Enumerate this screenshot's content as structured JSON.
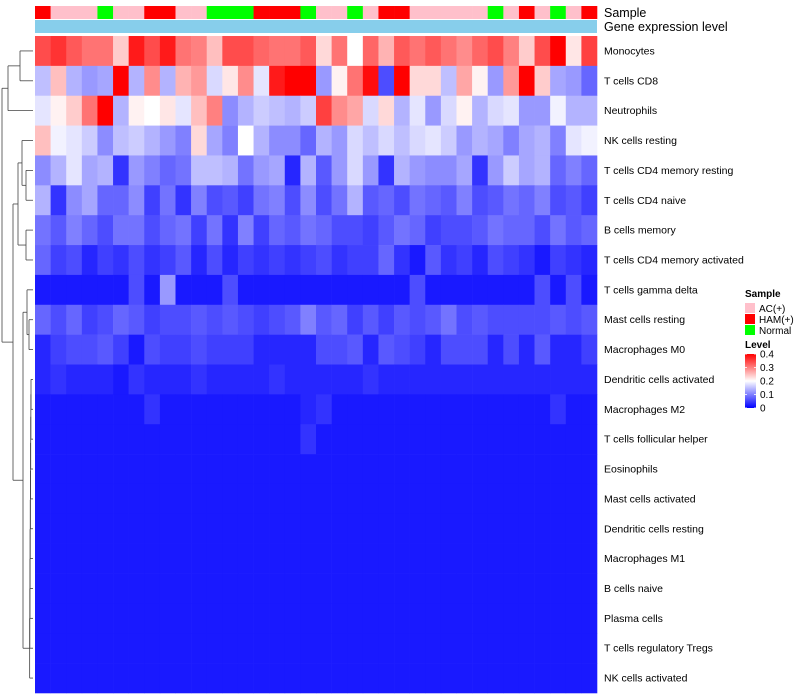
{
  "chart_data": {
    "type": "heatmap",
    "annotation_labels": [
      "Sample",
      "Gene expression level"
    ],
    "row_labels": [
      "Monocytes",
      "T cells CD8",
      "Neutrophils",
      "NK cells resting",
      "T cells CD4 memory resting",
      "T cells CD4 naive",
      "B cells memory",
      "T cells CD4 memory activated",
      "T cells gamma delta",
      "Mast cells resting",
      "Macrophages M0",
      "Dendritic cells activated",
      "Macrophages M2",
      "T cells follicular helper",
      "Eosinophils",
      "Mast cells activated",
      "Dendritic cells resting",
      "Macrophages M1",
      "B cells naive",
      "Plasma cells",
      "T cells regulatory  Tregs",
      "NK cells activated"
    ],
    "sample_groups": [
      "HAM(+)",
      "AC(+)",
      "AC(+)",
      "AC(+)",
      "Normal",
      "AC(+)",
      "AC(+)",
      "HAM(+)",
      "HAM(+)",
      "AC(+)",
      "AC(+)",
      "Normal",
      "Normal",
      "Normal",
      "HAM(+)",
      "HAM(+)",
      "HAM(+)",
      "Normal",
      "AC(+)",
      "AC(+)",
      "Normal",
      "AC(+)",
      "HAM(+)",
      "HAM(+)",
      "AC(+)",
      "AC(+)",
      "AC(+)",
      "AC(+)",
      "AC(+)",
      "Normal",
      "AC(+)",
      "HAM(+)",
      "AC(+)",
      "Normal",
      "AC(+)",
      "HAM(+)"
    ],
    "values": [
      [
        0.34,
        0.36,
        0.33,
        0.31,
        0.31,
        0.24,
        0.38,
        0.34,
        0.38,
        0.31,
        0.3,
        0.25,
        0.34,
        0.34,
        0.32,
        0.31,
        0.31,
        0.33,
        0.23,
        0.31,
        0.2,
        0.32,
        0.26,
        0.33,
        0.31,
        0.33,
        0.31,
        0.29,
        0.32,
        0.34,
        0.3,
        0.24,
        0.34,
        0.4,
        0.22,
        0.35
      ],
      [
        0.15,
        0.25,
        0.14,
        0.12,
        0.13,
        0.4,
        0.14,
        0.29,
        0.14,
        0.26,
        0.28,
        0.17,
        0.22,
        0.29,
        0.18,
        0.38,
        0.4,
        0.4,
        0.12,
        0.21,
        0.31,
        0.39,
        0.06,
        0.4,
        0.23,
        0.23,
        0.15,
        0.27,
        0.21,
        0.12,
        0.28,
        0.4,
        0.24,
        0.13,
        0.12,
        0.08
      ],
      [
        0.18,
        0.21,
        0.24,
        0.31,
        0.4,
        0.14,
        0.21,
        0.2,
        0.22,
        0.18,
        0.25,
        0.3,
        0.11,
        0.14,
        0.16,
        0.15,
        0.14,
        0.16,
        0.35,
        0.29,
        0.27,
        0.17,
        0.23,
        0.14,
        0.18,
        0.12,
        0.17,
        0.21,
        0.14,
        0.17,
        0.18,
        0.12,
        0.12,
        0.19,
        0.14,
        0.14
      ],
      [
        0.25,
        0.19,
        0.18,
        0.16,
        0.11,
        0.15,
        0.16,
        0.14,
        0.12,
        0.1,
        0.23,
        0.13,
        0.1,
        0.2,
        0.14,
        0.11,
        0.11,
        0.08,
        0.14,
        0.12,
        0.17,
        0.15,
        0.17,
        0.15,
        0.17,
        0.18,
        0.16,
        0.12,
        0.14,
        0.13,
        0.1,
        0.13,
        0.14,
        0.1,
        0.18,
        0.19
      ],
      [
        0.11,
        0.14,
        0.18,
        0.13,
        0.14,
        0.04,
        0.12,
        0.1,
        0.08,
        0.09,
        0.15,
        0.15,
        0.14,
        0.09,
        0.12,
        0.13,
        0.03,
        0.14,
        0.07,
        0.12,
        0.17,
        0.12,
        0.04,
        0.14,
        0.12,
        0.11,
        0.11,
        0.13,
        0.04,
        0.12,
        0.16,
        0.13,
        0.14,
        0.08,
        0.1,
        0.08
      ],
      [
        0.14,
        0.04,
        0.11,
        0.13,
        0.08,
        0.08,
        0.11,
        0.05,
        0.09,
        0.04,
        0.1,
        0.06,
        0.07,
        0.05,
        0.09,
        0.1,
        0.06,
        0.11,
        0.06,
        0.09,
        0.14,
        0.07,
        0.08,
        0.06,
        0.09,
        0.08,
        0.07,
        0.1,
        0.06,
        0.07,
        0.09,
        0.08,
        0.1,
        0.06,
        0.07,
        0.05
      ],
      [
        0.09,
        0.07,
        0.1,
        0.08,
        0.06,
        0.09,
        0.09,
        0.06,
        0.08,
        0.09,
        0.05,
        0.09,
        0.04,
        0.1,
        0.05,
        0.08,
        0.07,
        0.09,
        0.08,
        0.06,
        0.06,
        0.05,
        0.07,
        0.09,
        0.08,
        0.05,
        0.06,
        0.06,
        0.07,
        0.09,
        0.08,
        0.08,
        0.06,
        0.09,
        0.07,
        0.08
      ],
      [
        0.08,
        0.05,
        0.06,
        0.03,
        0.05,
        0.04,
        0.06,
        0.04,
        0.05,
        0.07,
        0.03,
        0.06,
        0.03,
        0.05,
        0.04,
        0.05,
        0.04,
        0.05,
        0.06,
        0.04,
        0.05,
        0.05,
        0.08,
        0.04,
        0.02,
        0.07,
        0.04,
        0.05,
        0.03,
        0.06,
        0.05,
        0.04,
        0.02,
        0.05,
        0.04,
        0.03
      ],
      [
        0.02,
        0.02,
        0.02,
        0.02,
        0.02,
        0.02,
        0.06,
        0.02,
        0.12,
        0.02,
        0.02,
        0.02,
        0.06,
        0.02,
        0.02,
        0.02,
        0.02,
        0.02,
        0.02,
        0.02,
        0.02,
        0.02,
        0.02,
        0.02,
        0.06,
        0.02,
        0.02,
        0.02,
        0.02,
        0.02,
        0.02,
        0.02,
        0.06,
        0.02,
        0.06,
        0.02
      ],
      [
        0.08,
        0.06,
        0.08,
        0.05,
        0.06,
        0.08,
        0.07,
        0.05,
        0.06,
        0.06,
        0.07,
        0.06,
        0.07,
        0.06,
        0.05,
        0.06,
        0.07,
        0.1,
        0.07,
        0.08,
        0.05,
        0.07,
        0.05,
        0.07,
        0.06,
        0.07,
        0.09,
        0.06,
        0.07,
        0.06,
        0.06,
        0.06,
        0.06,
        0.07,
        0.06,
        0.07
      ],
      [
        0.03,
        0.05,
        0.06,
        0.06,
        0.07,
        0.05,
        0.02,
        0.06,
        0.05,
        0.05,
        0.06,
        0.05,
        0.05,
        0.05,
        0.03,
        0.03,
        0.03,
        0.03,
        0.06,
        0.06,
        0.07,
        0.03,
        0.07,
        0.06,
        0.05,
        0.03,
        0.06,
        0.06,
        0.06,
        0.03,
        0.06,
        0.03,
        0.07,
        0.03,
        0.03,
        0.05
      ],
      [
        0.03,
        0.04,
        0.03,
        0.03,
        0.03,
        0.02,
        0.04,
        0.03,
        0.03,
        0.03,
        0.04,
        0.03,
        0.03,
        0.03,
        0.03,
        0.04,
        0.03,
        0.03,
        0.03,
        0.03,
        0.03,
        0.04,
        0.03,
        0.03,
        0.03,
        0.03,
        0.03,
        0.03,
        0.03,
        0.03,
        0.03,
        0.03,
        0.03,
        0.03,
        0.03,
        0.03
      ],
      [
        0.02,
        0.02,
        0.02,
        0.02,
        0.02,
        0.02,
        0.02,
        0.04,
        0.02,
        0.02,
        0.02,
        0.02,
        0.02,
        0.02,
        0.02,
        0.02,
        0.02,
        0.03,
        0.04,
        0.02,
        0.02,
        0.02,
        0.02,
        0.02,
        0.02,
        0.02,
        0.02,
        0.02,
        0.02,
        0.02,
        0.02,
        0.02,
        0.02,
        0.04,
        0.02,
        0.02
      ],
      [
        0.02,
        0.02,
        0.02,
        0.02,
        0.02,
        0.02,
        0.02,
        0.02,
        0.02,
        0.02,
        0.02,
        0.02,
        0.02,
        0.02,
        0.02,
        0.02,
        0.02,
        0.04,
        0.02,
        0.02,
        0.02,
        0.02,
        0.02,
        0.02,
        0.02,
        0.02,
        0.02,
        0.02,
        0.02,
        0.02,
        0.02,
        0.02,
        0.02,
        0.02,
        0.02,
        0.02
      ],
      [
        0.02,
        0.02,
        0.02,
        0.02,
        0.02,
        0.02,
        0.02,
        0.02,
        0.02,
        0.02,
        0.02,
        0.02,
        0.02,
        0.02,
        0.02,
        0.02,
        0.02,
        0.02,
        0.02,
        0.02,
        0.02,
        0.02,
        0.02,
        0.02,
        0.02,
        0.02,
        0.02,
        0.02,
        0.02,
        0.02,
        0.02,
        0.02,
        0.02,
        0.02,
        0.02,
        0.02
      ],
      [
        0.02,
        0.02,
        0.02,
        0.02,
        0.02,
        0.02,
        0.02,
        0.02,
        0.02,
        0.02,
        0.02,
        0.02,
        0.02,
        0.02,
        0.02,
        0.02,
        0.02,
        0.02,
        0.02,
        0.02,
        0.02,
        0.02,
        0.02,
        0.02,
        0.02,
        0.02,
        0.02,
        0.02,
        0.02,
        0.02,
        0.02,
        0.02,
        0.02,
        0.02,
        0.02,
        0.02
      ],
      [
        0.02,
        0.02,
        0.02,
        0.02,
        0.02,
        0.02,
        0.02,
        0.02,
        0.02,
        0.02,
        0.02,
        0.02,
        0.02,
        0.02,
        0.02,
        0.02,
        0.02,
        0.02,
        0.02,
        0.02,
        0.02,
        0.02,
        0.02,
        0.02,
        0.02,
        0.02,
        0.02,
        0.02,
        0.02,
        0.02,
        0.02,
        0.02,
        0.02,
        0.02,
        0.02,
        0.02
      ],
      [
        0.02,
        0.02,
        0.02,
        0.02,
        0.02,
        0.02,
        0.02,
        0.02,
        0.02,
        0.02,
        0.02,
        0.02,
        0.02,
        0.02,
        0.02,
        0.02,
        0.02,
        0.02,
        0.02,
        0.02,
        0.02,
        0.02,
        0.02,
        0.02,
        0.02,
        0.02,
        0.02,
        0.02,
        0.02,
        0.02,
        0.02,
        0.02,
        0.02,
        0.02,
        0.02,
        0.02
      ],
      [
        0.02,
        0.02,
        0.02,
        0.02,
        0.02,
        0.02,
        0.02,
        0.02,
        0.02,
        0.02,
        0.02,
        0.02,
        0.02,
        0.02,
        0.02,
        0.02,
        0.02,
        0.02,
        0.02,
        0.02,
        0.02,
        0.02,
        0.02,
        0.02,
        0.02,
        0.02,
        0.02,
        0.02,
        0.02,
        0.02,
        0.02,
        0.02,
        0.02,
        0.02,
        0.02,
        0.02
      ],
      [
        0.02,
        0.02,
        0.02,
        0.02,
        0.02,
        0.02,
        0.02,
        0.02,
        0.02,
        0.02,
        0.02,
        0.02,
        0.02,
        0.02,
        0.02,
        0.02,
        0.02,
        0.02,
        0.02,
        0.02,
        0.02,
        0.02,
        0.02,
        0.02,
        0.02,
        0.02,
        0.02,
        0.02,
        0.02,
        0.02,
        0.02,
        0.02,
        0.02,
        0.02,
        0.02,
        0.02
      ],
      [
        0.02,
        0.02,
        0.02,
        0.02,
        0.02,
        0.02,
        0.02,
        0.02,
        0.02,
        0.02,
        0.02,
        0.02,
        0.02,
        0.02,
        0.02,
        0.02,
        0.02,
        0.02,
        0.02,
        0.02,
        0.02,
        0.02,
        0.02,
        0.02,
        0.02,
        0.02,
        0.02,
        0.02,
        0.02,
        0.02,
        0.02,
        0.02,
        0.02,
        0.02,
        0.02,
        0.02
      ],
      [
        0.02,
        0.02,
        0.02,
        0.02,
        0.02,
        0.02,
        0.02,
        0.02,
        0.02,
        0.02,
        0.02,
        0.02,
        0.02,
        0.02,
        0.02,
        0.02,
        0.02,
        0.02,
        0.02,
        0.02,
        0.02,
        0.02,
        0.02,
        0.02,
        0.02,
        0.02,
        0.02,
        0.02,
        0.02,
        0.02,
        0.02,
        0.02,
        0.02,
        0.02,
        0.02,
        0.02
      ]
    ],
    "legend": {
      "sample_title": "Sample",
      "groups": [
        {
          "name": "AC(+)",
          "color": "#FFC0CB"
        },
        {
          "name": "HAM(+)",
          "color": "#FF0000"
        },
        {
          "name": "Normal",
          "color": "#00FF00"
        }
      ],
      "level_title": "Level",
      "level_ticks": [
        0.4,
        0.3,
        0.2,
        0.1,
        0
      ],
      "scale": {
        "min": 0,
        "mid": 0.2,
        "max": 0.4,
        "low_color": "#0000FF",
        "mid_color": "#FFFFFF",
        "high_color": "#FF0000"
      }
    },
    "gene_expression_color": "#87CEEB"
  }
}
